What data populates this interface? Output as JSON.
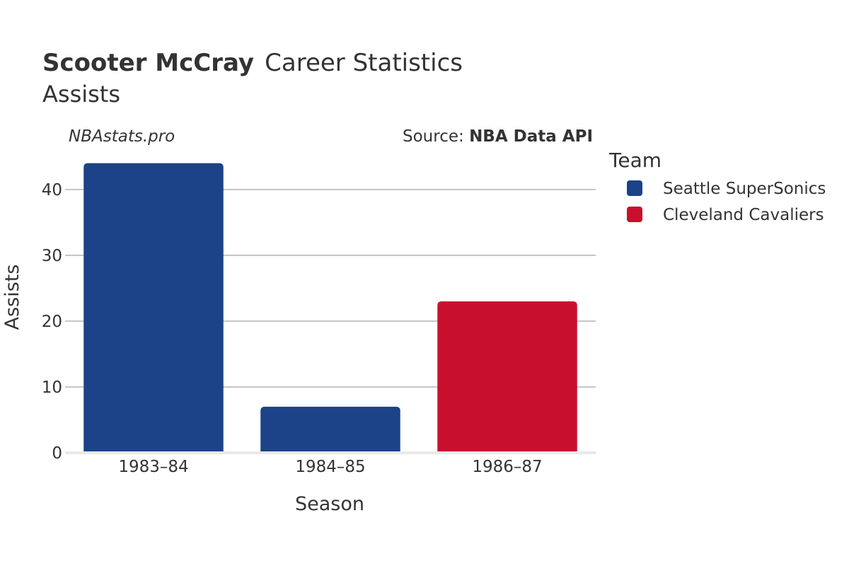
{
  "header": {
    "player_name": "Scooter McCray",
    "title_rest": "Career Statistics",
    "subtitle": "Assists",
    "credit": "NBAstats.pro",
    "source_prefix": "Source: ",
    "source_name": "NBA Data API"
  },
  "legend": {
    "title": "Team",
    "items": [
      {
        "label": "Seattle SuperSonics",
        "color": "#1c4387"
      },
      {
        "label": "Cleveland Cavaliers",
        "color": "#c8102e"
      }
    ]
  },
  "chart_data": {
    "type": "bar",
    "title": "Scooter McCray Career Statistics",
    "subtitle": "Assists",
    "xlabel": "Season",
    "ylabel": "Assists",
    "categories": [
      "1983–84",
      "1984–85",
      "1986–87"
    ],
    "values": [
      44,
      7,
      23
    ],
    "teams": [
      "Seattle SuperSonics",
      "Seattle SuperSonics",
      "Cleveland Cavaliers"
    ],
    "colors": [
      "#1c4387",
      "#1c4387",
      "#c8102e"
    ],
    "yticks": [
      0,
      10,
      20,
      30,
      40
    ],
    "ylim": [
      0,
      46
    ],
    "grid": true,
    "legend_position": "right"
  }
}
